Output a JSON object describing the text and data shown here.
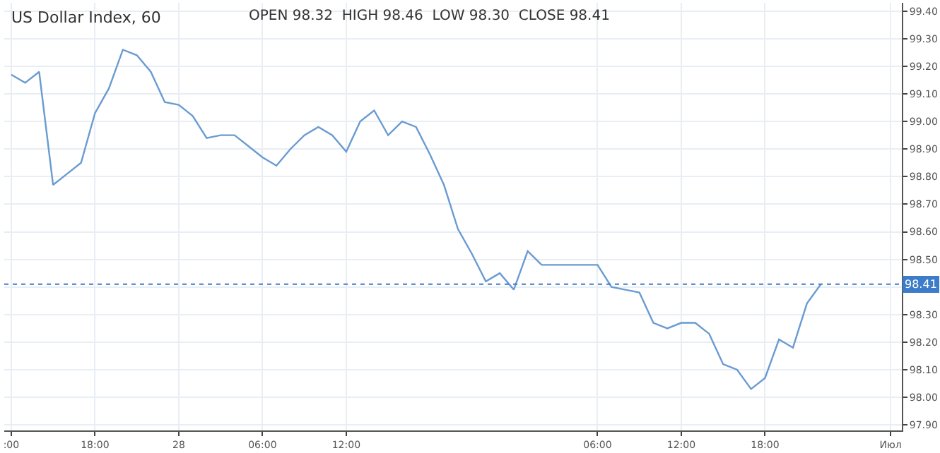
{
  "chart_data": {
    "type": "line",
    "title": "US Dollar Index, 60",
    "annotations": [
      "OPEN 98.32  HIGH 98.46  LOW 98.30  CLOSE 98.41"
    ],
    "categories": [
      ":00",
      null,
      null,
      null,
      null,
      null,
      "18:00",
      null,
      null,
      null,
      null,
      null,
      "28",
      null,
      null,
      null,
      null,
      null,
      "06:00",
      null,
      null,
      null,
      null,
      null,
      "12:00",
      null,
      null,
      null,
      null,
      null,
      null,
      null,
      null,
      null,
      null,
      null,
      null,
      null,
      null,
      null,
      null,
      null,
      "06:00",
      null,
      null,
      null,
      null,
      null,
      "12:00",
      null,
      null,
      null,
      null,
      null,
      "18:00",
      null,
      null,
      null,
      null,
      null,
      null,
      null,
      null,
      "Июл"
    ],
    "series": [
      {
        "color": "#6a9bd1",
        "values": [
          99.17,
          99.14,
          99.18,
          98.77,
          98.81,
          98.85,
          99.03,
          99.12,
          99.26,
          99.24,
          99.18,
          99.07,
          99.06,
          99.02,
          98.94,
          98.95,
          98.95,
          98.91,
          98.87,
          98.84,
          98.9,
          98.95,
          98.98,
          98.95,
          98.89,
          99.0,
          99.04,
          98.95,
          99.0,
          98.98,
          98.88,
          98.77,
          98.61,
          98.52,
          98.42,
          98.45,
          98.39,
          98.53,
          98.48,
          98.48,
          98.48,
          98.48,
          98.48,
          98.4,
          98.39,
          98.38,
          98.27,
          98.25,
          98.27,
          98.27,
          98.23,
          98.12,
          98.1,
          98.03,
          98.07,
          98.21,
          98.18,
          98.34,
          98.41,
          null,
          null,
          null,
          null,
          null
        ]
      }
    ],
    "ylim": [
      97.88,
      99.43
    ],
    "yticks": [
      {
        "value": 97.9,
        "label": "97.90"
      },
      {
        "value": 98.0,
        "label": "98.00"
      },
      {
        "value": 98.1,
        "label": "98.10"
      },
      {
        "value": 98.2,
        "label": "98.20"
      },
      {
        "value": 98.3,
        "label": "98.30"
      },
      {
        "value": 98.4,
        "label": null
      },
      {
        "value": 98.5,
        "label": "98.50"
      },
      {
        "value": 98.6,
        "label": "98.60"
      },
      {
        "value": 98.7,
        "label": "98.70"
      },
      {
        "value": 98.8,
        "label": "98.80"
      },
      {
        "value": 98.9,
        "label": "98.90"
      },
      {
        "value": 99.0,
        "label": "99.00"
      },
      {
        "value": 99.1,
        "label": "99.10"
      },
      {
        "value": 99.2,
        "label": "99.20"
      },
      {
        "value": 99.3,
        "label": "99.30"
      },
      {
        "value": 99.4,
        "label": "99.40"
      }
    ],
    "ref_lines": [
      {
        "axis": "y",
        "value": 98.41,
        "label": "98.41",
        "color": "#3d7cc9",
        "line_style": "dotted"
      }
    ],
    "grid": true,
    "marker": "none",
    "line_style": "solid"
  }
}
